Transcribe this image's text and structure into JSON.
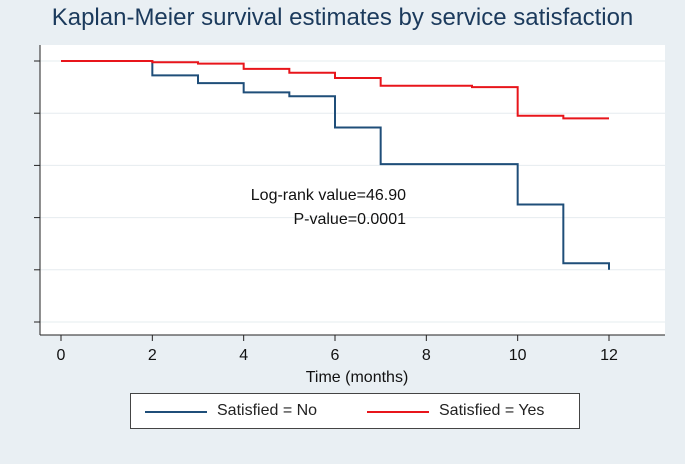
{
  "chart_data": {
    "type": "line",
    "title": "Kaplan-Meier survival estimates by service satisfaction",
    "xlabel": "Time (months)",
    "ylabel": "",
    "xlim": [
      0,
      12
    ],
    "ylim": [
      0,
      1
    ],
    "x_ticks": [
      0,
      2,
      4,
      6,
      8,
      10,
      12
    ],
    "y_ticks": [
      0,
      0.2,
      0.4,
      0.6,
      0.8,
      1.0
    ],
    "y_tick_labels_visible": false,
    "grid": "horizontal",
    "step": true,
    "series": [
      {
        "name": "Satisfied = No",
        "color": "#1f4e79",
        "x": [
          0,
          2,
          3,
          4,
          5,
          6,
          7,
          10,
          11,
          12
        ],
        "y": [
          1.0,
          0.945,
          0.915,
          0.88,
          0.865,
          0.745,
          0.605,
          0.45,
          0.225,
          0.2
        ]
      },
      {
        "name": "Satisfied = Yes",
        "color": "#e8151b",
        "x": [
          0,
          2,
          3,
          4,
          5,
          6,
          7,
          9,
          10,
          11,
          12
        ],
        "y": [
          1.0,
          0.995,
          0.99,
          0.97,
          0.955,
          0.935,
          0.905,
          0.9,
          0.79,
          0.78,
          0.78
        ]
      }
    ],
    "legend": {
      "position": "bottom",
      "entries": [
        "Satisfied = No",
        "Satisfied = Yes"
      ]
    },
    "annotations": [
      "Log-rank value=46.90",
      "P-value=0.0001"
    ]
  }
}
